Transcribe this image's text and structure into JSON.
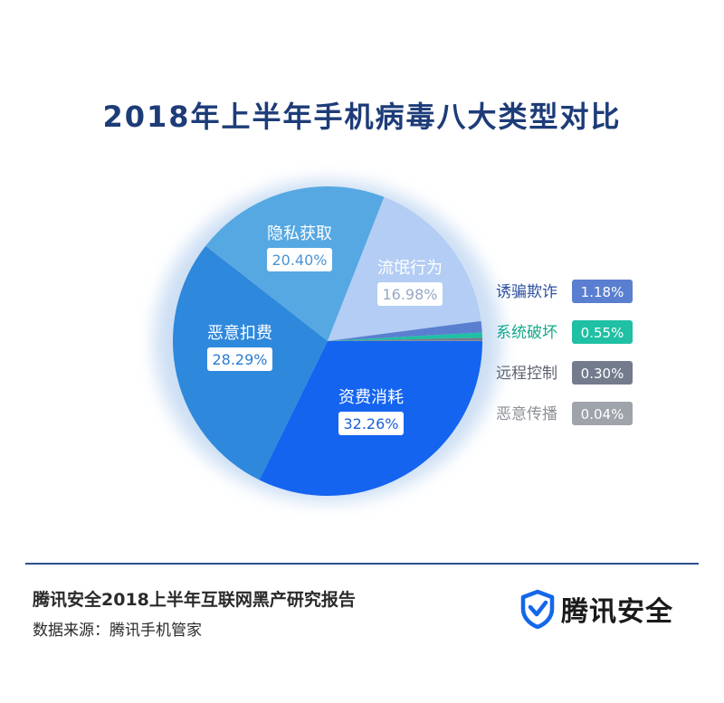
{
  "chart_data": {
    "type": "pie",
    "title": "2018年上半年手机病毒八大类型对比",
    "slices": [
      {
        "label": "资费消耗",
        "value": 32.26,
        "display": "32.26%",
        "color": "#1464f0"
      },
      {
        "label": "恶意扣费",
        "value": 28.29,
        "display": "28.29%",
        "color": "#2e88dc"
      },
      {
        "label": "隐私获取",
        "value": 20.4,
        "display": "20.40%",
        "color": "#56a8e2"
      },
      {
        "label": "流氓行为",
        "value": 16.98,
        "display": "16.98%",
        "color": "#b3cdf4"
      },
      {
        "label": "诱骗欺诈",
        "value": 1.18,
        "display": "1.18%",
        "color": "#5b7fd0"
      },
      {
        "label": "系统破坏",
        "value": 0.55,
        "display": "0.55%",
        "color": "#1fc0a3"
      },
      {
        "label": "远程控制",
        "value": 0.3,
        "display": "0.30%",
        "color": "#737b8c"
      },
      {
        "label": "恶意传播",
        "value": 0.04,
        "display": "0.04%",
        "color": "#9fa3aa"
      }
    ],
    "legend_placement": "right"
  },
  "footer": {
    "report_title": "腾讯安全2018上半年互联网黑产研究报告",
    "source": "数据来源：腾讯手机管家",
    "brand_name": "腾讯安全"
  },
  "colors": {
    "title": "#1d3c78",
    "divider": "#2f4f8f",
    "brand_shield": "#1467e8"
  },
  "icons": {
    "brand": "shield-check-icon"
  }
}
